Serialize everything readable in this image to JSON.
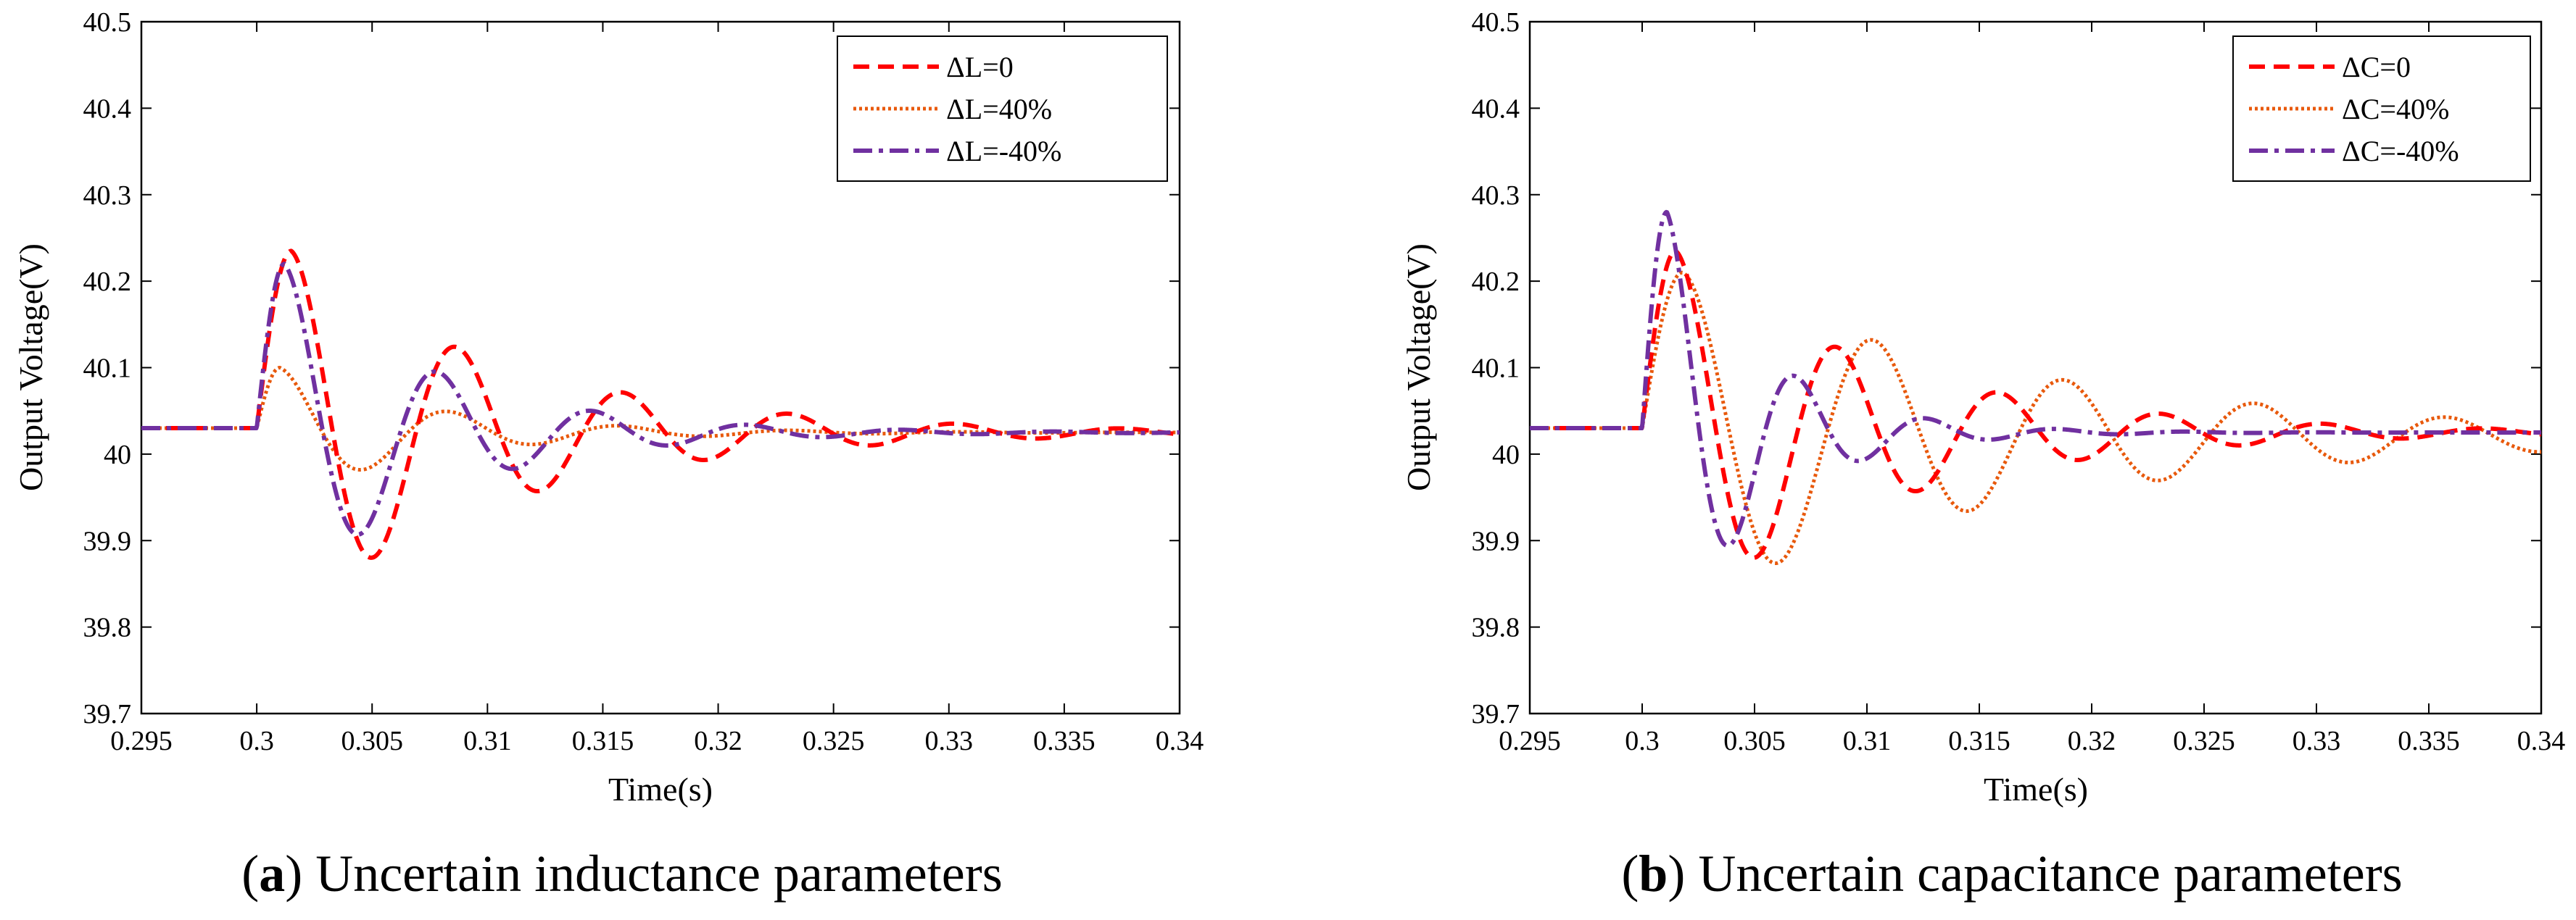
{
  "chart_data": [
    {
      "type": "line",
      "panel": "a",
      "caption_letter": "a",
      "caption_text": ") Uncertain inductance parameters",
      "caption_open": "(",
      "xlabel": "Time(s)",
      "ylabel": "Output Voltage(V)",
      "xlim": [
        0.295,
        0.34
      ],
      "ylim": [
        39.7,
        40.5
      ],
      "xticks": [
        0.295,
        0.3,
        0.305,
        0.31,
        0.315,
        0.32,
        0.325,
        0.33,
        0.335,
        0.34
      ],
      "xtick_labels": [
        "0.295",
        "0.3",
        "0.305",
        "0.31",
        "0.315",
        "0.32",
        "0.325",
        "0.33",
        "0.335",
        "0.34"
      ],
      "yticks": [
        39.7,
        39.8,
        39.9,
        40,
        40.1,
        40.2,
        40.3,
        40.4,
        40.5
      ],
      "ytick_labels": [
        "39.7",
        "39.8",
        "39.9",
        "40",
        "40.1",
        "40.2",
        "40.3",
        "40.4",
        "40.5"
      ],
      "grid": false,
      "legend_position": "top-right",
      "t0": 0.3,
      "baseline": 40.03,
      "series": [
        {
          "name": "ΔL=0",
          "color": "#ff0000",
          "style": "dashed",
          "final": 40.025,
          "peak": 40.235,
          "t_peak": 0.3015,
          "amp": 0.195,
          "period": 0.0072,
          "tau": 0.0095
        },
        {
          "name": "ΔL=40%",
          "color": "#e8590c",
          "style": "dotted",
          "final": 40.025,
          "peak": 40.1,
          "t_peak": 0.301,
          "amp": 0.063,
          "period": 0.0074,
          "tau": 0.0065
        },
        {
          "name": "ΔL=-40%",
          "color": "#7030a0",
          "style": "dashdot",
          "final": 40.025,
          "peak": 40.22,
          "t_peak": 0.3012,
          "amp": 0.17,
          "period": 0.0067,
          "tau": 0.0065
        }
      ]
    },
    {
      "type": "line",
      "panel": "b",
      "caption_letter": "b",
      "caption_text": ") Uncertain capacitance parameters",
      "caption_open": "(",
      "xlabel": "Time(s)",
      "ylabel": "Output Voltage(V)",
      "xlim": [
        0.295,
        0.34
      ],
      "ylim": [
        39.7,
        40.5
      ],
      "xticks": [
        0.295,
        0.3,
        0.305,
        0.31,
        0.315,
        0.32,
        0.325,
        0.33,
        0.335,
        0.34
      ],
      "xtick_labels": [
        "0.295",
        "0.3",
        "0.305",
        "0.31",
        "0.315",
        "0.32",
        "0.325",
        "0.33",
        "0.335",
        "0.34"
      ],
      "yticks": [
        39.7,
        39.8,
        39.9,
        40,
        40.1,
        40.2,
        40.3,
        40.4,
        40.5
      ],
      "ytick_labels": [
        "39.7",
        "39.8",
        "39.9",
        "40",
        "40.1",
        "40.2",
        "40.3",
        "40.4",
        "40.5"
      ],
      "grid": false,
      "legend_position": "top-right",
      "t0": 0.3,
      "baseline": 40.03,
      "series": [
        {
          "name": "ΔC=0",
          "color": "#ff0000",
          "style": "dashed",
          "final": 40.025,
          "peak": 40.235,
          "t_peak": 0.3015,
          "amp": 0.195,
          "period": 0.0072,
          "tau": 0.0095
        },
        {
          "name": "ΔC=40%",
          "color": "#e8590c",
          "style": "dotted",
          "final": 40.02,
          "peak": 40.21,
          "t_peak": 0.3018,
          "amp": 0.19,
          "period": 0.0085,
          "tau": 0.016
        },
        {
          "name": "ΔC=-40%",
          "color": "#7030a0",
          "style": "dashdot",
          "final": 40.025,
          "peak": 40.28,
          "t_peak": 0.3011,
          "amp": 0.24,
          "period": 0.0058,
          "tau": 0.0042
        }
      ]
    }
  ]
}
